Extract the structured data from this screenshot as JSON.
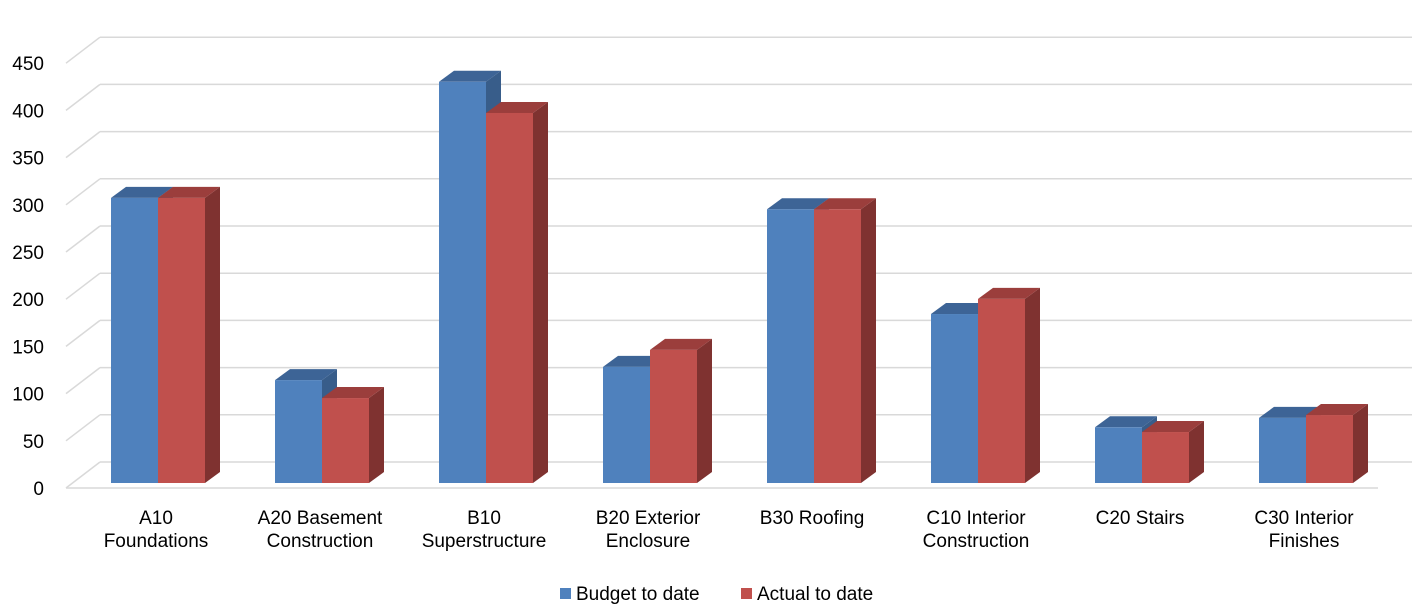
{
  "chart_data": {
    "type": "bar",
    "style": "3d-clustered-column",
    "categories": [
      [
        "A10",
        "Foundations"
      ],
      [
        "A20 Basement",
        "Construction"
      ],
      [
        "B10",
        "Superstructure"
      ],
      [
        "B20 Exterior",
        "Enclosure"
      ],
      [
        "B30 Roofing"
      ],
      [
        "C10 Interior",
        "Construction"
      ],
      [
        "C20 Stairs"
      ],
      [
        "C30 Interior",
        "Finishes"
      ]
    ],
    "series": [
      {
        "name": "Budget to date",
        "color": "#4F81BD",
        "top_color": "#3D6496",
        "side_color": "#385D8A",
        "values": [
          302,
          109,
          425,
          123,
          290,
          179,
          59,
          69
        ]
      },
      {
        "name": "Actual to date",
        "color": "#C0504D",
        "top_color": "#9B3E3C",
        "side_color": "#7F3230",
        "values": [
          302,
          90,
          392,
          141,
          290,
          195,
          54,
          72
        ]
      }
    ],
    "y_ticks": [
      0,
      50,
      100,
      150,
      200,
      250,
      300,
      350,
      400,
      450
    ],
    "ylim": [
      0,
      450
    ],
    "title": "",
    "xlabel": "",
    "ylabel": "",
    "grid": true,
    "legend_position": "bottom"
  }
}
